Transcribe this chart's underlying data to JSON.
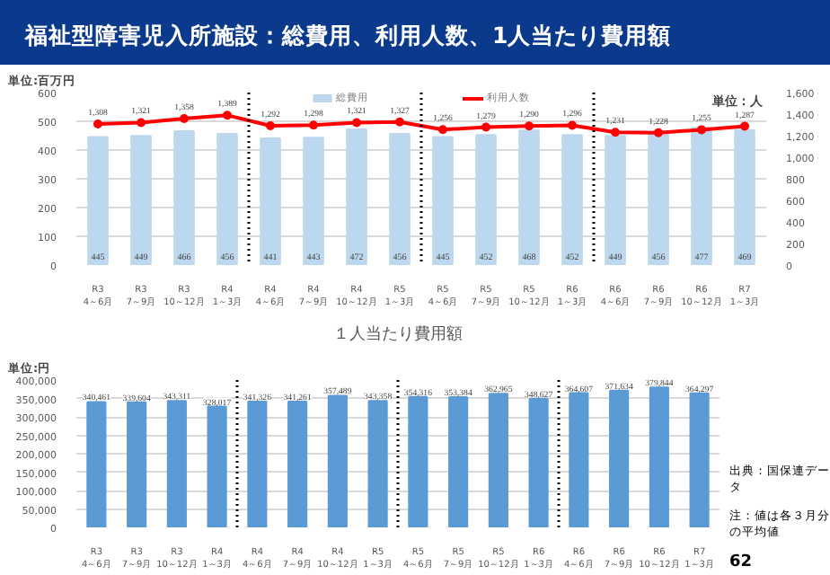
{
  "chart_data": [
    {
      "type": "bar",
      "title": "福祉型障害児入所施設：総費用、利用人数、1人当たり費用額",
      "ylabel": "単位:百万円",
      "y2label": "単位：人",
      "categories": [
        "R3\n4～6月",
        "R3\n7～9月",
        "R3\n10～12月",
        "R4\n1～3月",
        "R4\n4～6月",
        "R4\n7～9月",
        "R4\n10～12月",
        "R5\n1～3月",
        "R5\n4～6月",
        "R5\n7～9月",
        "R5\n10～12月",
        "R6\n1～3月",
        "R6\n4～6月",
        "R6\n7～9月",
        "R6\n10～12月",
        "R7\n1～3月"
      ],
      "series": [
        {
          "name": "総費用",
          "type": "bar",
          "color": "#bdd7ee",
          "values": [
            445,
            449,
            466,
            456,
            441,
            443,
            472,
            456,
            445,
            452,
            468,
            452,
            449,
            456,
            477,
            469
          ],
          "value_labels": [
            "445",
            "449",
            "466",
            "456",
            "441",
            "443",
            "472",
            "456",
            "445",
            "452",
            "468",
            "452",
            "449",
            "456",
            "477",
            "469"
          ]
        },
        {
          "name": "利用人数",
          "type": "line",
          "axis": "y2",
          "color": "#ff0000",
          "values": [
            1308,
            1321,
            1358,
            1389,
            1292,
            1298,
            1321,
            1327,
            1256,
            1279,
            1290,
            1296,
            1231,
            1228,
            1255,
            1287
          ],
          "value_labels": [
            "1,308",
            "1,321",
            "1,358",
            "1,389",
            "1,292",
            "1,298",
            "1,321",
            "1,327",
            "1,256",
            "1,279",
            "1,290",
            "1,296",
            "1,231",
            "1,228",
            "1,255",
            "1,287"
          ]
        }
      ],
      "marker": "circle",
      "ylim": [
        0,
        600
      ],
      "yticks": [
        0,
        100,
        200,
        300,
        400,
        500,
        600
      ],
      "y2lim": [
        0,
        1600
      ],
      "y2ticks": [
        0,
        {
          "value": 200,
          "label": "200"
        },
        {
          "value": 400,
          "label": "400"
        },
        {
          "value": 600,
          "label": "600"
        },
        {
          "value": 800,
          "label": "800"
        },
        {
          "value": 1000,
          "label": "1,000"
        },
        {
          "value": 1200,
          "label": "1,200"
        },
        {
          "value": 1400,
          "label": "1,400"
        },
        {
          "value": 1600,
          "label": "1,600"
        }
      ],
      "grid": "y",
      "legend": "top"
    },
    {
      "type": "bar",
      "title": "１人当たり費用額",
      "ylabel": "単位:円",
      "categories": [
        "R3\n4～6月",
        "R3\n7～9月",
        "R3\n10～12月",
        "R4\n1～3月",
        "R4\n4～6月",
        "R4\n7～9月",
        "R4\n10～12月",
        "R5\n1～3月",
        "R5\n4～6月",
        "R5\n7～9月",
        "R5\n10～12月",
        "R6\n1～3月",
        "R6\n4～6月",
        "R6\n7～9月",
        "R6\n10～12月",
        "R7\n1～3月"
      ],
      "series": [
        {
          "color": "#5b9bd5",
          "values": [
            340461,
            339604,
            343311,
            328017,
            341326,
            341261,
            357489,
            343358,
            354316,
            353384,
            362965,
            348627,
            364607,
            371634,
            379844,
            364297
          ],
          "value_labels": [
            "340,461",
            "339,604",
            "343,311",
            "328,017",
            "341,326",
            "341,261",
            "357,489",
            "343,358",
            "354,316",
            "353,384",
            "362,965",
            "348,627",
            "364,607",
            "371,634",
            "379,844",
            "364,297"
          ]
        }
      ],
      "ylim": [
        0,
        400000
      ],
      "yticks": [
        {
          "value": 0,
          "label": "0"
        },
        {
          "value": 50000,
          "label": "50,000"
        },
        {
          "value": 100000,
          "label": "100,000"
        },
        {
          "value": 150000,
          "label": "150,000"
        },
        {
          "value": 200000,
          "label": "200,000"
        },
        {
          "value": 250000,
          "label": "250,000"
        },
        {
          "value": 300000,
          "label": "300,000"
        },
        {
          "value": 350000,
          "label": "350,000"
        },
        {
          "value": 400000,
          "label": "400,000"
        }
      ],
      "grid": "y",
      "annotations": [
        "出典：国保連データ",
        "注：値は各３月分の平均値",
        "62"
      ]
    }
  ]
}
